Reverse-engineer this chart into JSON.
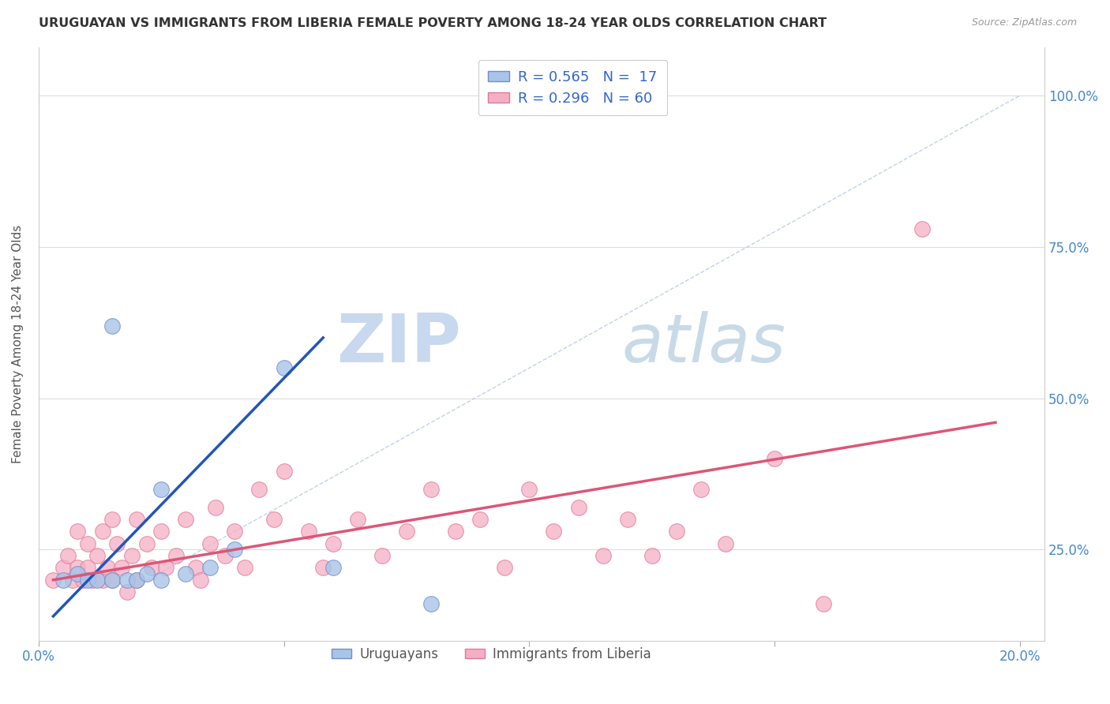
{
  "title": "URUGUAYAN VS IMMIGRANTS FROM LIBERIA FEMALE POVERTY AMONG 18-24 YEAR OLDS CORRELATION CHART",
  "source": "Source: ZipAtlas.com",
  "ylabel": "Female Poverty Among 18-24 Year Olds",
  "xlim": [
    0.0,
    0.205
  ],
  "ylim": [
    0.1,
    1.08
  ],
  "xtick_vals": [
    0.0,
    0.05,
    0.1,
    0.15,
    0.2
  ],
  "xtick_labels": [
    "0.0%",
    "",
    "",
    "",
    "20.0%"
  ],
  "ytick_vals": [
    0.25,
    0.5,
    0.75,
    1.0
  ],
  "ytick_labels": [
    "25.0%",
    "50.0%",
    "75.0%",
    "100.0%"
  ],
  "legend_r1": "R = 0.565",
  "legend_n1": "N =  17",
  "legend_r2": "R = 0.296",
  "legend_n2": "N = 60",
  "uruguayan_color": "#a8c4e8",
  "liberia_color": "#f5afc5",
  "uruguayan_edge": "#7090c8",
  "liberia_edge": "#e07898",
  "blue_line_color": "#2255bb",
  "pink_line_color": "#dd5577",
  "diag_line_color": "#b8cce0",
  "uruguayan_points": [
    [
      0.005,
      0.2
    ],
    [
      0.008,
      0.21
    ],
    [
      0.01,
      0.2
    ],
    [
      0.012,
      0.2
    ],
    [
      0.015,
      0.2
    ],
    [
      0.018,
      0.2
    ],
    [
      0.02,
      0.2
    ],
    [
      0.022,
      0.21
    ],
    [
      0.025,
      0.2
    ],
    [
      0.03,
      0.21
    ],
    [
      0.035,
      0.22
    ],
    [
      0.04,
      0.25
    ],
    [
      0.015,
      0.62
    ],
    [
      0.05,
      0.55
    ],
    [
      0.025,
      0.35
    ],
    [
      0.06,
      0.22
    ],
    [
      0.08,
      0.16
    ]
  ],
  "liberia_points": [
    [
      0.003,
      0.2
    ],
    [
      0.005,
      0.22
    ],
    [
      0.006,
      0.24
    ],
    [
      0.007,
      0.2
    ],
    [
      0.008,
      0.28
    ],
    [
      0.008,
      0.22
    ],
    [
      0.009,
      0.2
    ],
    [
      0.01,
      0.26
    ],
    [
      0.01,
      0.22
    ],
    [
      0.011,
      0.2
    ],
    [
      0.012,
      0.24
    ],
    [
      0.013,
      0.28
    ],
    [
      0.013,
      0.2
    ],
    [
      0.014,
      0.22
    ],
    [
      0.015,
      0.3
    ],
    [
      0.015,
      0.2
    ],
    [
      0.016,
      0.26
    ],
    [
      0.017,
      0.22
    ],
    [
      0.018,
      0.18
    ],
    [
      0.019,
      0.24
    ],
    [
      0.02,
      0.3
    ],
    [
      0.02,
      0.2
    ],
    [
      0.022,
      0.26
    ],
    [
      0.023,
      0.22
    ],
    [
      0.025,
      0.28
    ],
    [
      0.026,
      0.22
    ],
    [
      0.028,
      0.24
    ],
    [
      0.03,
      0.3
    ],
    [
      0.032,
      0.22
    ],
    [
      0.033,
      0.2
    ],
    [
      0.035,
      0.26
    ],
    [
      0.036,
      0.32
    ],
    [
      0.038,
      0.24
    ],
    [
      0.04,
      0.28
    ],
    [
      0.042,
      0.22
    ],
    [
      0.045,
      0.35
    ],
    [
      0.048,
      0.3
    ],
    [
      0.05,
      0.38
    ],
    [
      0.055,
      0.28
    ],
    [
      0.058,
      0.22
    ],
    [
      0.06,
      0.26
    ],
    [
      0.065,
      0.3
    ],
    [
      0.07,
      0.24
    ],
    [
      0.075,
      0.28
    ],
    [
      0.08,
      0.35
    ],
    [
      0.085,
      0.28
    ],
    [
      0.09,
      0.3
    ],
    [
      0.095,
      0.22
    ],
    [
      0.1,
      0.35
    ],
    [
      0.105,
      0.28
    ],
    [
      0.11,
      0.32
    ],
    [
      0.115,
      0.24
    ],
    [
      0.12,
      0.3
    ],
    [
      0.125,
      0.24
    ],
    [
      0.13,
      0.28
    ],
    [
      0.135,
      0.35
    ],
    [
      0.14,
      0.26
    ],
    [
      0.15,
      0.4
    ],
    [
      0.16,
      0.16
    ],
    [
      0.18,
      0.78
    ]
  ],
  "blue_line_x": [
    0.003,
    0.058
  ],
  "blue_line_y": [
    0.14,
    0.6
  ],
  "pink_line_x": [
    0.003,
    0.195
  ],
  "pink_line_y": [
    0.2,
    0.46
  ]
}
